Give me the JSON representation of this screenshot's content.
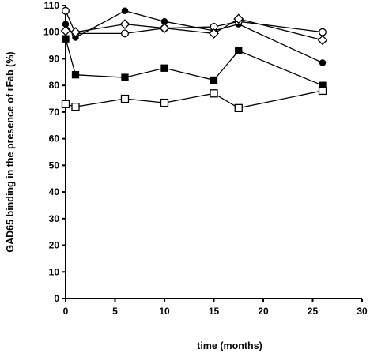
{
  "chart_data": {
    "type": "line",
    "title": "",
    "xlabel": "time (months)",
    "ylabel": "GAD65 binding in the presence of rFab (%)",
    "xlim": [
      0,
      30
    ],
    "ylim": [
      0,
      110
    ],
    "xticks": [
      0,
      5,
      10,
      15,
      20,
      25,
      30
    ],
    "yticks": [
      0,
      10,
      20,
      30,
      40,
      50,
      60,
      70,
      80,
      90,
      100,
      110
    ],
    "grid": false,
    "legend": "none",
    "series": [
      {
        "marker": "filled-circle",
        "points": [
          {
            "x": 0,
            "y": 103
          },
          {
            "x": 1,
            "y": 98
          },
          {
            "x": 6,
            "y": 108
          },
          {
            "x": 10,
            "y": 104
          },
          {
            "x": 15,
            "y": 100.5
          },
          {
            "x": 17.5,
            "y": 103
          },
          {
            "x": 26,
            "y": 88.5
          }
        ]
      },
      {
        "marker": "open-circle",
        "points": [
          {
            "x": 0,
            "y": 108
          },
          {
            "x": 1,
            "y": 99.5
          },
          {
            "x": 6,
            "y": 99.5
          },
          {
            "x": 10,
            "y": 101.5
          },
          {
            "x": 15,
            "y": 102
          },
          {
            "x": 17.5,
            "y": 104
          },
          {
            "x": 26,
            "y": 100
          }
        ]
      },
      {
        "marker": "open-diamond",
        "points": [
          {
            "x": 0,
            "y": 100.5
          },
          {
            "x": 1,
            "y": 100
          },
          {
            "x": 6,
            "y": 103
          },
          {
            "x": 10,
            "y": 101.5
          },
          {
            "x": 15,
            "y": 99.5
          },
          {
            "x": 17.5,
            "y": 105
          },
          {
            "x": 26,
            "y": 97
          }
        ]
      },
      {
        "marker": "filled-square",
        "points": [
          {
            "x": 0,
            "y": 97.5
          },
          {
            "x": 1,
            "y": 84
          },
          {
            "x": 6,
            "y": 83
          },
          {
            "x": 10,
            "y": 86.5
          },
          {
            "x": 15,
            "y": 82
          },
          {
            "x": 17.5,
            "y": 93
          },
          {
            "x": 26,
            "y": 80
          }
        ]
      },
      {
        "marker": "open-square",
        "points": [
          {
            "x": 0,
            "y": 73
          },
          {
            "x": 1,
            "y": 72
          },
          {
            "x": 6,
            "y": 75
          },
          {
            "x": 10,
            "y": 73.5
          },
          {
            "x": 15,
            "y": 77
          },
          {
            "x": 17.5,
            "y": 71.5
          },
          {
            "x": 26,
            "y": 78
          }
        ]
      }
    ]
  }
}
